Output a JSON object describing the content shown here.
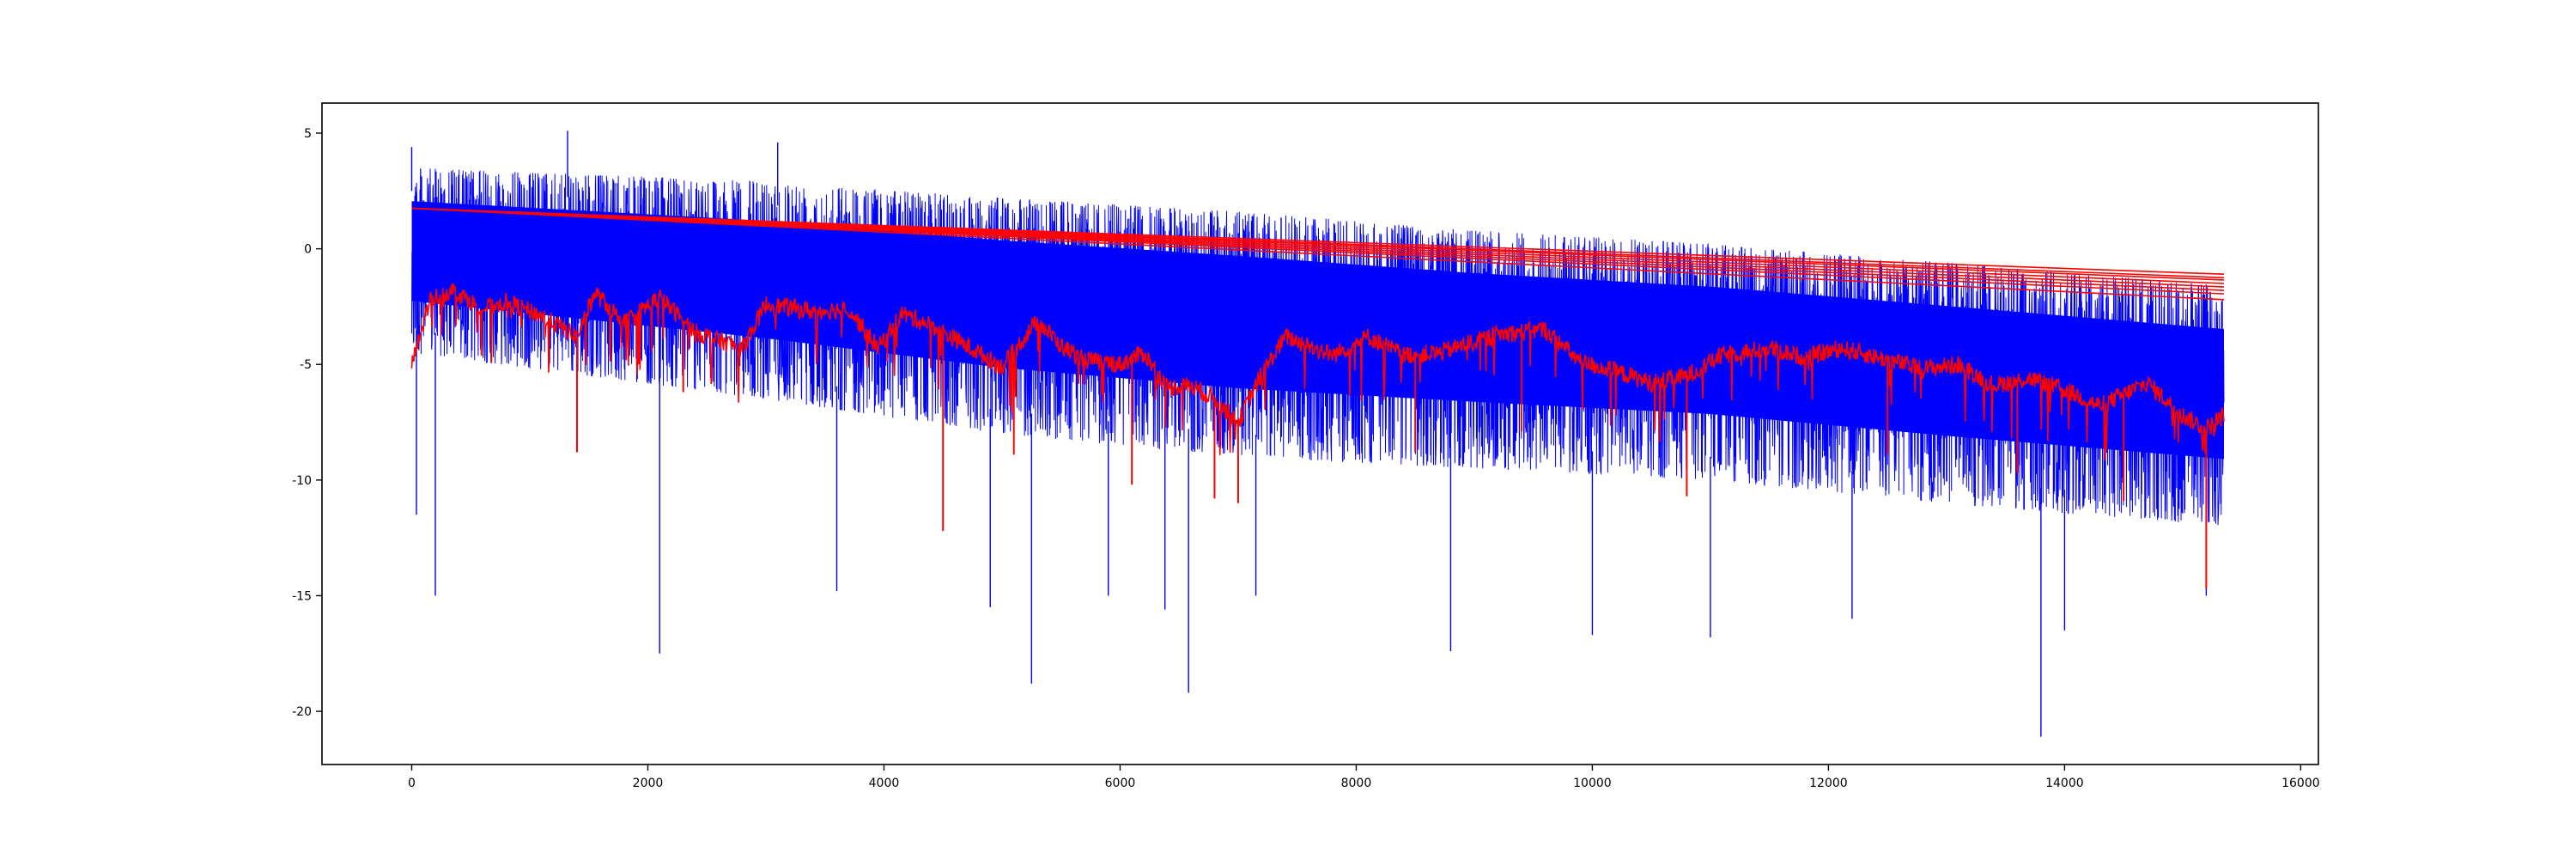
{
  "chart_data": {
    "type": "line",
    "title": "",
    "xlabel": "",
    "ylabel": "",
    "xlim": [
      -760,
      16150
    ],
    "ylim": [
      -22.3,
      6.3
    ],
    "grid": false,
    "x_ticks": [
      {
        "value": 0,
        "label": "0"
      },
      {
        "value": 2000,
        "label": "2000"
      },
      {
        "value": 4000,
        "label": "4000"
      },
      {
        "value": 6000,
        "label": "6000"
      },
      {
        "value": 8000,
        "label": "8000"
      },
      {
        "value": 10000,
        "label": "10000"
      },
      {
        "value": 12000,
        "label": "12000"
      },
      {
        "value": 14000,
        "label": "14000"
      },
      {
        "value": 16000,
        "label": "16000"
      }
    ],
    "y_ticks": [
      {
        "value": 5,
        "label": "5"
      },
      {
        "value": 0,
        "label": "0"
      },
      {
        "value": -5,
        "label": "-5"
      },
      {
        "value": -10,
        "label": "-10"
      },
      {
        "value": -15,
        "label": "-15"
      },
      {
        "value": -20,
        "label": "-20"
      }
    ],
    "series": [
      {
        "color": "#0000ff",
        "style": "dense-noise",
        "x_range": [
          0,
          15350
        ],
        "upper_envelope": [
          [
            0,
            3.5
          ],
          [
            1500,
            3.2
          ],
          [
            3000,
            2.9
          ],
          [
            5000,
            2.2
          ],
          [
            7000,
            1.6
          ],
          [
            9000,
            0.8
          ],
          [
            11000,
            0.2
          ],
          [
            13000,
            -0.6
          ],
          [
            15350,
            -1.6
          ]
        ],
        "lower_envelope": [
          [
            0,
            -4.5
          ],
          [
            1500,
            -5.5
          ],
          [
            3000,
            -6.5
          ],
          [
            5000,
            -8
          ],
          [
            7000,
            -9
          ],
          [
            9000,
            -9.5
          ],
          [
            11000,
            -10
          ],
          [
            13000,
            -11
          ],
          [
            15350,
            -12
          ]
        ],
        "spikes": [
          [
            0,
            4.4
          ],
          [
            40,
            -11.5
          ],
          [
            200,
            -15
          ],
          [
            1320,
            5.1
          ],
          [
            2100,
            -17.5
          ],
          [
            3100,
            4.6
          ],
          [
            3600,
            -14.8
          ],
          [
            4900,
            -15.5
          ],
          [
            5250,
            -18.8
          ],
          [
            5900,
            -15
          ],
          [
            6380,
            -15.6
          ],
          [
            6580,
            -19.2
          ],
          [
            7150,
            -15
          ],
          [
            8800,
            -17.4
          ],
          [
            10000,
            -16.7
          ],
          [
            11000,
            -16.8
          ],
          [
            12200,
            -16
          ],
          [
            13800,
            -21.1
          ],
          [
            14000,
            -16.5
          ],
          [
            15200,
            -15
          ]
        ]
      },
      {
        "color": "#ff0000",
        "style": "trend-lines",
        "start": [
          0,
          1.75
        ],
        "end_values_at_15350": [
          -1.1,
          -1.25,
          -1.35,
          -1.5,
          -1.65,
          -1.8,
          -1.95,
          -2.2
        ]
      },
      {
        "color": "#ff0000",
        "style": "rolling-min",
        "points": [
          [
            0,
            -5
          ],
          [
            60,
            -4
          ],
          [
            150,
            -2.2
          ],
          [
            350,
            -1.8
          ],
          [
            600,
            -2.6
          ],
          [
            800,
            -2.3
          ],
          [
            1100,
            -2.9
          ],
          [
            1300,
            -3.5
          ],
          [
            1400,
            -3.8
          ],
          [
            1550,
            -1.9
          ],
          [
            1800,
            -3.2
          ],
          [
            2100,
            -2.1
          ],
          [
            2400,
            -3.6
          ],
          [
            2800,
            -4.3
          ],
          [
            3000,
            -2.4
          ],
          [
            3400,
            -2.7
          ],
          [
            3700,
            -2.6
          ],
          [
            3950,
            -4.3
          ],
          [
            4150,
            -2.8
          ],
          [
            4400,
            -3.3
          ],
          [
            4600,
            -3.9
          ],
          [
            5000,
            -5.1
          ],
          [
            5300,
            -3.1
          ],
          [
            5500,
            -4.2
          ],
          [
            5700,
            -4.8
          ],
          [
            6000,
            -5
          ],
          [
            6200,
            -4.5
          ],
          [
            6400,
            -6
          ],
          [
            6600,
            -5.9
          ],
          [
            6800,
            -6.5
          ],
          [
            7000,
            -7.5
          ],
          [
            7200,
            -5.4
          ],
          [
            7400,
            -3.8
          ],
          [
            7800,
            -4.6
          ],
          [
            8100,
            -3.8
          ],
          [
            8400,
            -4.6
          ],
          [
            8700,
            -4.5
          ],
          [
            9200,
            -3.7
          ],
          [
            9600,
            -3.5
          ],
          [
            9900,
            -4.9
          ],
          [
            10200,
            -5.3
          ],
          [
            10500,
            -5.8
          ],
          [
            10800,
            -5.5
          ],
          [
            11100,
            -4.6
          ],
          [
            11500,
            -4.3
          ],
          [
            11800,
            -4.7
          ],
          [
            12100,
            -4.3
          ],
          [
            12500,
            -4.8
          ],
          [
            12800,
            -5.2
          ],
          [
            13100,
            -5
          ],
          [
            13400,
            -5.9
          ],
          [
            13700,
            -5.6
          ],
          [
            14000,
            -6.1
          ],
          [
            14300,
            -6.8
          ],
          [
            14700,
            -5.8
          ],
          [
            15000,
            -7.2
          ],
          [
            15200,
            -7.8
          ],
          [
            15350,
            -7.2
          ]
        ],
        "dips": [
          [
            1400,
            -8.8
          ],
          [
            2300,
            -6.2
          ],
          [
            4500,
            -12.2
          ],
          [
            5100,
            -8.9
          ],
          [
            6100,
            -10.2
          ],
          [
            6800,
            -10.8
          ],
          [
            7000,
            -11
          ],
          [
            8500,
            -8.8
          ],
          [
            9400,
            -7.9
          ],
          [
            10800,
            -10.7
          ],
          [
            12500,
            -8.9
          ],
          [
            13600,
            -9.7
          ],
          [
            14500,
            -10.9
          ],
          [
            15200,
            -14.7
          ]
        ]
      }
    ]
  }
}
